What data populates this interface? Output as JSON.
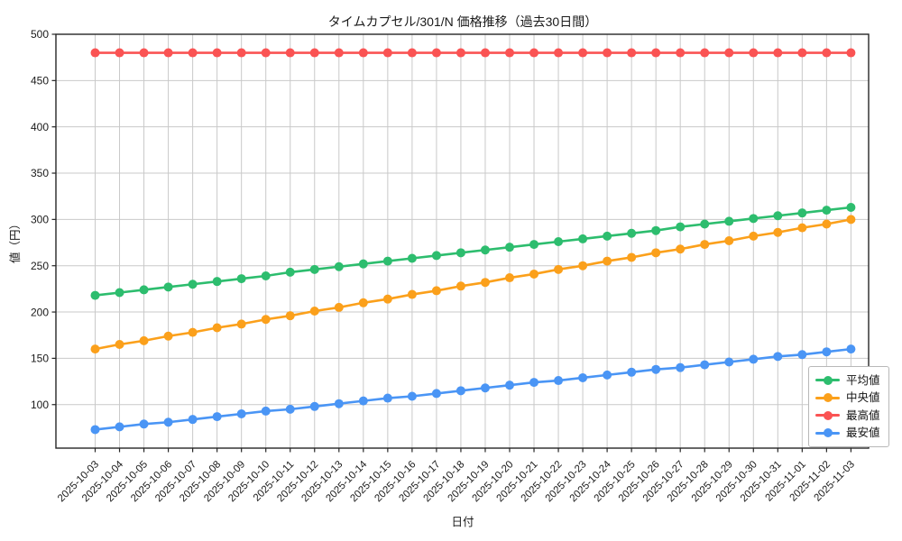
{
  "chart_data": {
    "type": "line",
    "title": "タイムカプセル/301/N 価格推移（過去30日間）",
    "xlabel": "日付",
    "ylabel": "値（円）",
    "ylim": [
      53,
      500
    ],
    "yticks": [
      100,
      150,
      200,
      250,
      300,
      350,
      400,
      450,
      500
    ],
    "grid": true,
    "grid_color": "#c9c9c9",
    "spine_color": "#262626",
    "text_color": "#1a1a1a",
    "legend_position": "lower right",
    "categories": [
      "2025-10-03",
      "2025-10-04",
      "2025-10-05",
      "2025-10-06",
      "2025-10-07",
      "2025-10-08",
      "2025-10-09",
      "2025-10-10",
      "2025-10-11",
      "2025-10-12",
      "2025-10-13",
      "2025-10-14",
      "2025-10-15",
      "2025-10-16",
      "2025-10-17",
      "2025-10-18",
      "2025-10-19",
      "2025-10-20",
      "2025-10-21",
      "2025-10-22",
      "2025-10-23",
      "2025-10-24",
      "2025-10-25",
      "2025-10-26",
      "2025-10-27",
      "2025-10-28",
      "2025-10-29",
      "2025-10-30",
      "2025-10-31",
      "2025-11-01",
      "2025-11-02",
      "2025-11-03"
    ],
    "series": [
      {
        "key": "average",
        "name": "平均値",
        "color": "#2dbd6e",
        "values": [
          218,
          221,
          224,
          227,
          230,
          233,
          236,
          239,
          243,
          246,
          249,
          252,
          255,
          258,
          261,
          264,
          267,
          270,
          273,
          276,
          279,
          282,
          285,
          288,
          292,
          295,
          298,
          301,
          304,
          307,
          310,
          313
        ]
      },
      {
        "key": "median",
        "name": "中央値",
        "color": "#fba01b",
        "values": [
          160,
          165,
          169,
          174,
          178,
          183,
          187,
          192,
          196,
          201,
          205,
          210,
          214,
          219,
          223,
          228,
          232,
          237,
          241,
          246,
          250,
          255,
          259,
          264,
          268,
          273,
          277,
          282,
          286,
          291,
          295,
          300
        ]
      },
      {
        "key": "max",
        "name": "最高値",
        "color": "#fa5353",
        "values": [
          480,
          480,
          480,
          480,
          480,
          480,
          480,
          480,
          480,
          480,
          480,
          480,
          480,
          480,
          480,
          480,
          480,
          480,
          480,
          480,
          480,
          480,
          480,
          480,
          480,
          480,
          480,
          480,
          480,
          480,
          480,
          480
        ]
      },
      {
        "key": "min",
        "name": "最安値",
        "color": "#4a95f5",
        "values": [
          73,
          76,
          79,
          81,
          84,
          87,
          90,
          93,
          95,
          98,
          101,
          104,
          107,
          109,
          112,
          115,
          118,
          121,
          124,
          126,
          129,
          132,
          135,
          138,
          140,
          143,
          146,
          149,
          152,
          154,
          157,
          160
        ]
      }
    ]
  }
}
